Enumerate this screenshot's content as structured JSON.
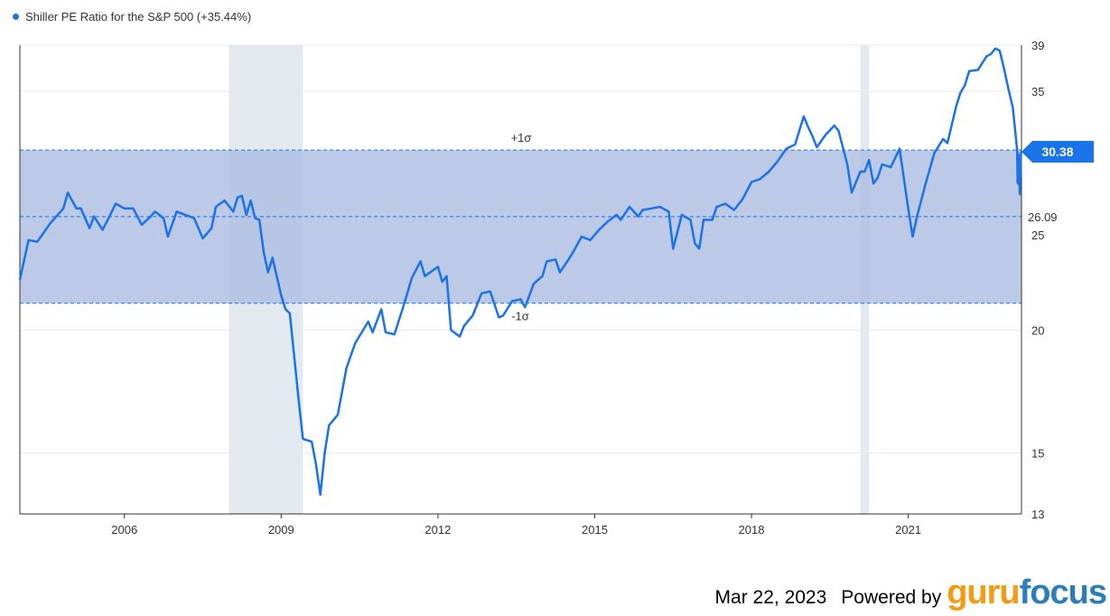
{
  "legend": {
    "label": "Shiller PE Ratio for the S&P 500 (+35.44%)",
    "color": "#1a73e8"
  },
  "footer": {
    "date": "Mar 22, 2023",
    "powered_by": "Powered by",
    "logo_part1": "guru",
    "logo_part2": "focus"
  },
  "chart_data": {
    "type": "line",
    "title": "Shiller PE Ratio for the S&P 500 (+35.44%)",
    "y_scale": "log",
    "ylim": [
      13,
      39
    ],
    "xlim": [
      "2004-01",
      "2023-03"
    ],
    "x_ticks": [
      "2006",
      "2009",
      "2012",
      "2015",
      "2018",
      "2021"
    ],
    "y_ticks": [
      13,
      15,
      20,
      25,
      35,
      39
    ],
    "last_value": {
      "value": 30.38,
      "label": "30.38"
    },
    "mean": {
      "value": 26.09,
      "label": "26.09"
    },
    "plus_sigma": {
      "value": 30.5,
      "label": "+1σ"
    },
    "minus_sigma": {
      "value": 21.3,
      "label": "-1σ"
    },
    "recessions": [
      [
        "2008-01",
        "2009-06"
      ],
      [
        "2020-02",
        "2020-04"
      ]
    ],
    "line_color": "#1a73e8",
    "band_color": "#b0bfe3",
    "series": [
      {
        "values": [
          [
            "2004-01",
            22.5
          ],
          [
            "2004-03",
            24.7
          ],
          [
            "2004-05",
            24.6
          ],
          [
            "2004-08",
            25.7
          ],
          [
            "2004-11",
            26.6
          ],
          [
            "2004-12",
            27.6
          ],
          [
            "2005-02",
            26.6
          ],
          [
            "2005-03",
            26.6
          ],
          [
            "2005-05",
            25.4
          ],
          [
            "2005-06",
            26.1
          ],
          [
            "2005-08",
            25.3
          ],
          [
            "2005-09",
            25.8
          ],
          [
            "2005-11",
            26.9
          ],
          [
            "2006-01",
            26.6
          ],
          [
            "2006-03",
            26.6
          ],
          [
            "2006-05",
            25.6
          ],
          [
            "2006-07",
            26.1
          ],
          [
            "2006-08",
            26.4
          ],
          [
            "2006-10",
            26.0
          ],
          [
            "2006-11",
            24.9
          ],
          [
            "2007-01",
            26.4
          ],
          [
            "2007-03",
            26.2
          ],
          [
            "2007-05",
            26.0
          ],
          [
            "2007-07",
            24.8
          ],
          [
            "2007-09",
            25.4
          ],
          [
            "2007-10",
            26.7
          ],
          [
            "2007-12",
            27.1
          ],
          [
            "2008-02",
            26.4
          ],
          [
            "2008-03",
            27.3
          ],
          [
            "2008-04",
            27.4
          ],
          [
            "2008-05",
            26.2
          ],
          [
            "2008-06",
            27.1
          ],
          [
            "2008-07",
            26.0
          ],
          [
            "2008-08",
            25.9
          ],
          [
            "2008-09",
            24.0
          ],
          [
            "2008-10",
            22.9
          ],
          [
            "2008-11",
            23.7
          ],
          [
            "2009-01",
            21.7
          ],
          [
            "2009-02",
            21.0
          ],
          [
            "2009-03",
            20.8
          ],
          [
            "2009-05",
            17.0
          ],
          [
            "2009-06",
            15.5
          ],
          [
            "2009-08",
            15.4
          ],
          [
            "2009-09",
            14.6
          ],
          [
            "2009-10",
            13.6
          ],
          [
            "2009-11",
            15.0
          ],
          [
            "2009-12",
            16.0
          ],
          [
            "2010-02",
            16.4
          ],
          [
            "2010-04",
            18.3
          ],
          [
            "2010-06",
            19.4
          ],
          [
            "2010-09",
            20.4
          ],
          [
            "2010-10",
            19.9
          ],
          [
            "2010-12",
            21.0
          ],
          [
            "2011-01",
            19.9
          ],
          [
            "2011-03",
            19.8
          ],
          [
            "2011-05",
            21.1
          ],
          [
            "2011-07",
            22.6
          ],
          [
            "2011-09",
            23.5
          ],
          [
            "2011-10",
            22.7
          ],
          [
            "2012-01",
            23.2
          ],
          [
            "2012-02",
            22.4
          ],
          [
            "2012-03",
            22.7
          ],
          [
            "2012-04",
            20.0
          ],
          [
            "2012-06",
            19.7
          ],
          [
            "2012-07",
            20.2
          ],
          [
            "2012-09",
            20.7
          ],
          [
            "2012-11",
            21.8
          ],
          [
            "2013-01",
            21.9
          ],
          [
            "2013-03",
            20.6
          ],
          [
            "2013-04",
            20.7
          ],
          [
            "2013-06",
            21.4
          ],
          [
            "2013-08",
            21.5
          ],
          [
            "2013-09",
            21.1
          ],
          [
            "2013-11",
            22.3
          ],
          [
            "2014-01",
            22.7
          ],
          [
            "2014-02",
            23.5
          ],
          [
            "2014-04",
            23.6
          ],
          [
            "2014-05",
            22.9
          ],
          [
            "2014-07",
            23.6
          ],
          [
            "2014-08",
            24.0
          ],
          [
            "2014-10",
            24.9
          ],
          [
            "2014-12",
            24.7
          ],
          [
            "2015-02",
            25.3
          ],
          [
            "2015-04",
            25.8
          ],
          [
            "2015-06",
            26.2
          ],
          [
            "2015-07",
            25.9
          ],
          [
            "2015-09",
            26.7
          ],
          [
            "2015-11",
            26.1
          ],
          [
            "2015-12",
            26.5
          ],
          [
            "2016-02",
            26.6
          ],
          [
            "2016-04",
            26.7
          ],
          [
            "2016-06",
            26.4
          ],
          [
            "2016-07",
            24.2
          ],
          [
            "2016-09",
            26.2
          ],
          [
            "2016-11",
            25.9
          ],
          [
            "2016-12",
            24.5
          ],
          [
            "2017-01",
            24.2
          ],
          [
            "2017-02",
            25.9
          ],
          [
            "2017-04",
            25.9
          ],
          [
            "2017-05",
            26.7
          ],
          [
            "2017-07",
            26.9
          ],
          [
            "2017-09",
            26.5
          ],
          [
            "2017-11",
            27.2
          ],
          [
            "2018-01",
            28.3
          ],
          [
            "2018-03",
            28.5
          ],
          [
            "2018-05",
            29.0
          ],
          [
            "2018-07",
            29.7
          ],
          [
            "2018-09",
            30.6
          ],
          [
            "2018-11",
            30.9
          ],
          [
            "2019-01",
            33.0
          ],
          [
            "2019-02",
            32.2
          ],
          [
            "2019-03",
            31.5
          ],
          [
            "2019-04",
            30.7
          ],
          [
            "2019-06",
            31.6
          ],
          [
            "2019-08",
            32.3
          ],
          [
            "2019-09",
            31.9
          ],
          [
            "2019-11",
            29.5
          ],
          [
            "2019-12",
            27.6
          ],
          [
            "2020-02",
            29.0
          ],
          [
            "2020-03",
            29.0
          ],
          [
            "2020-04",
            29.8
          ],
          [
            "2020-05",
            28.2
          ],
          [
            "2020-06",
            28.6
          ],
          [
            "2020-07",
            29.5
          ],
          [
            "2020-09",
            29.3
          ],
          [
            "2020-11",
            30.6
          ],
          [
            "2021-01",
            26.6
          ],
          [
            "2021-02",
            24.9
          ],
          [
            "2021-03",
            26.1
          ],
          [
            "2021-05",
            28.2
          ],
          [
            "2021-07",
            30.3
          ],
          [
            "2021-09",
            31.3
          ],
          [
            "2021-10",
            31.0
          ],
          [
            "2021-12",
            33.8
          ],
          [
            "2022-01",
            34.9
          ],
          [
            "2022-02",
            35.5
          ],
          [
            "2022-03",
            36.7
          ],
          [
            "2022-05",
            36.8
          ],
          [
            "2022-06",
            37.4
          ],
          [
            "2022-07",
            38.0
          ],
          [
            "2022-08",
            38.2
          ],
          [
            "2022-09",
            38.7
          ],
          [
            "2022-10",
            38.5
          ],
          [
            "2022-11",
            36.9
          ],
          [
            "2022-12",
            35.2
          ],
          [
            "2023-01",
            33.7
          ],
          [
            "2023-02",
            30.5
          ],
          [
            "2023-03",
            28.3
          ],
          [
            "2023-03",
            28.2
          ],
          [
            "2023-03",
            30.2
          ],
          [
            "2023-03",
            29.3
          ],
          [
            "2023-03",
            28.3
          ],
          [
            "2023-03",
            27.5
          ],
          [
            "2023-03",
            28.6
          ],
          [
            "2023-03",
            29.1
          ],
          [
            "2023-03",
            30.3
          ],
          [
            "2023-03",
            30.38
          ]
        ]
      }
    ]
  }
}
